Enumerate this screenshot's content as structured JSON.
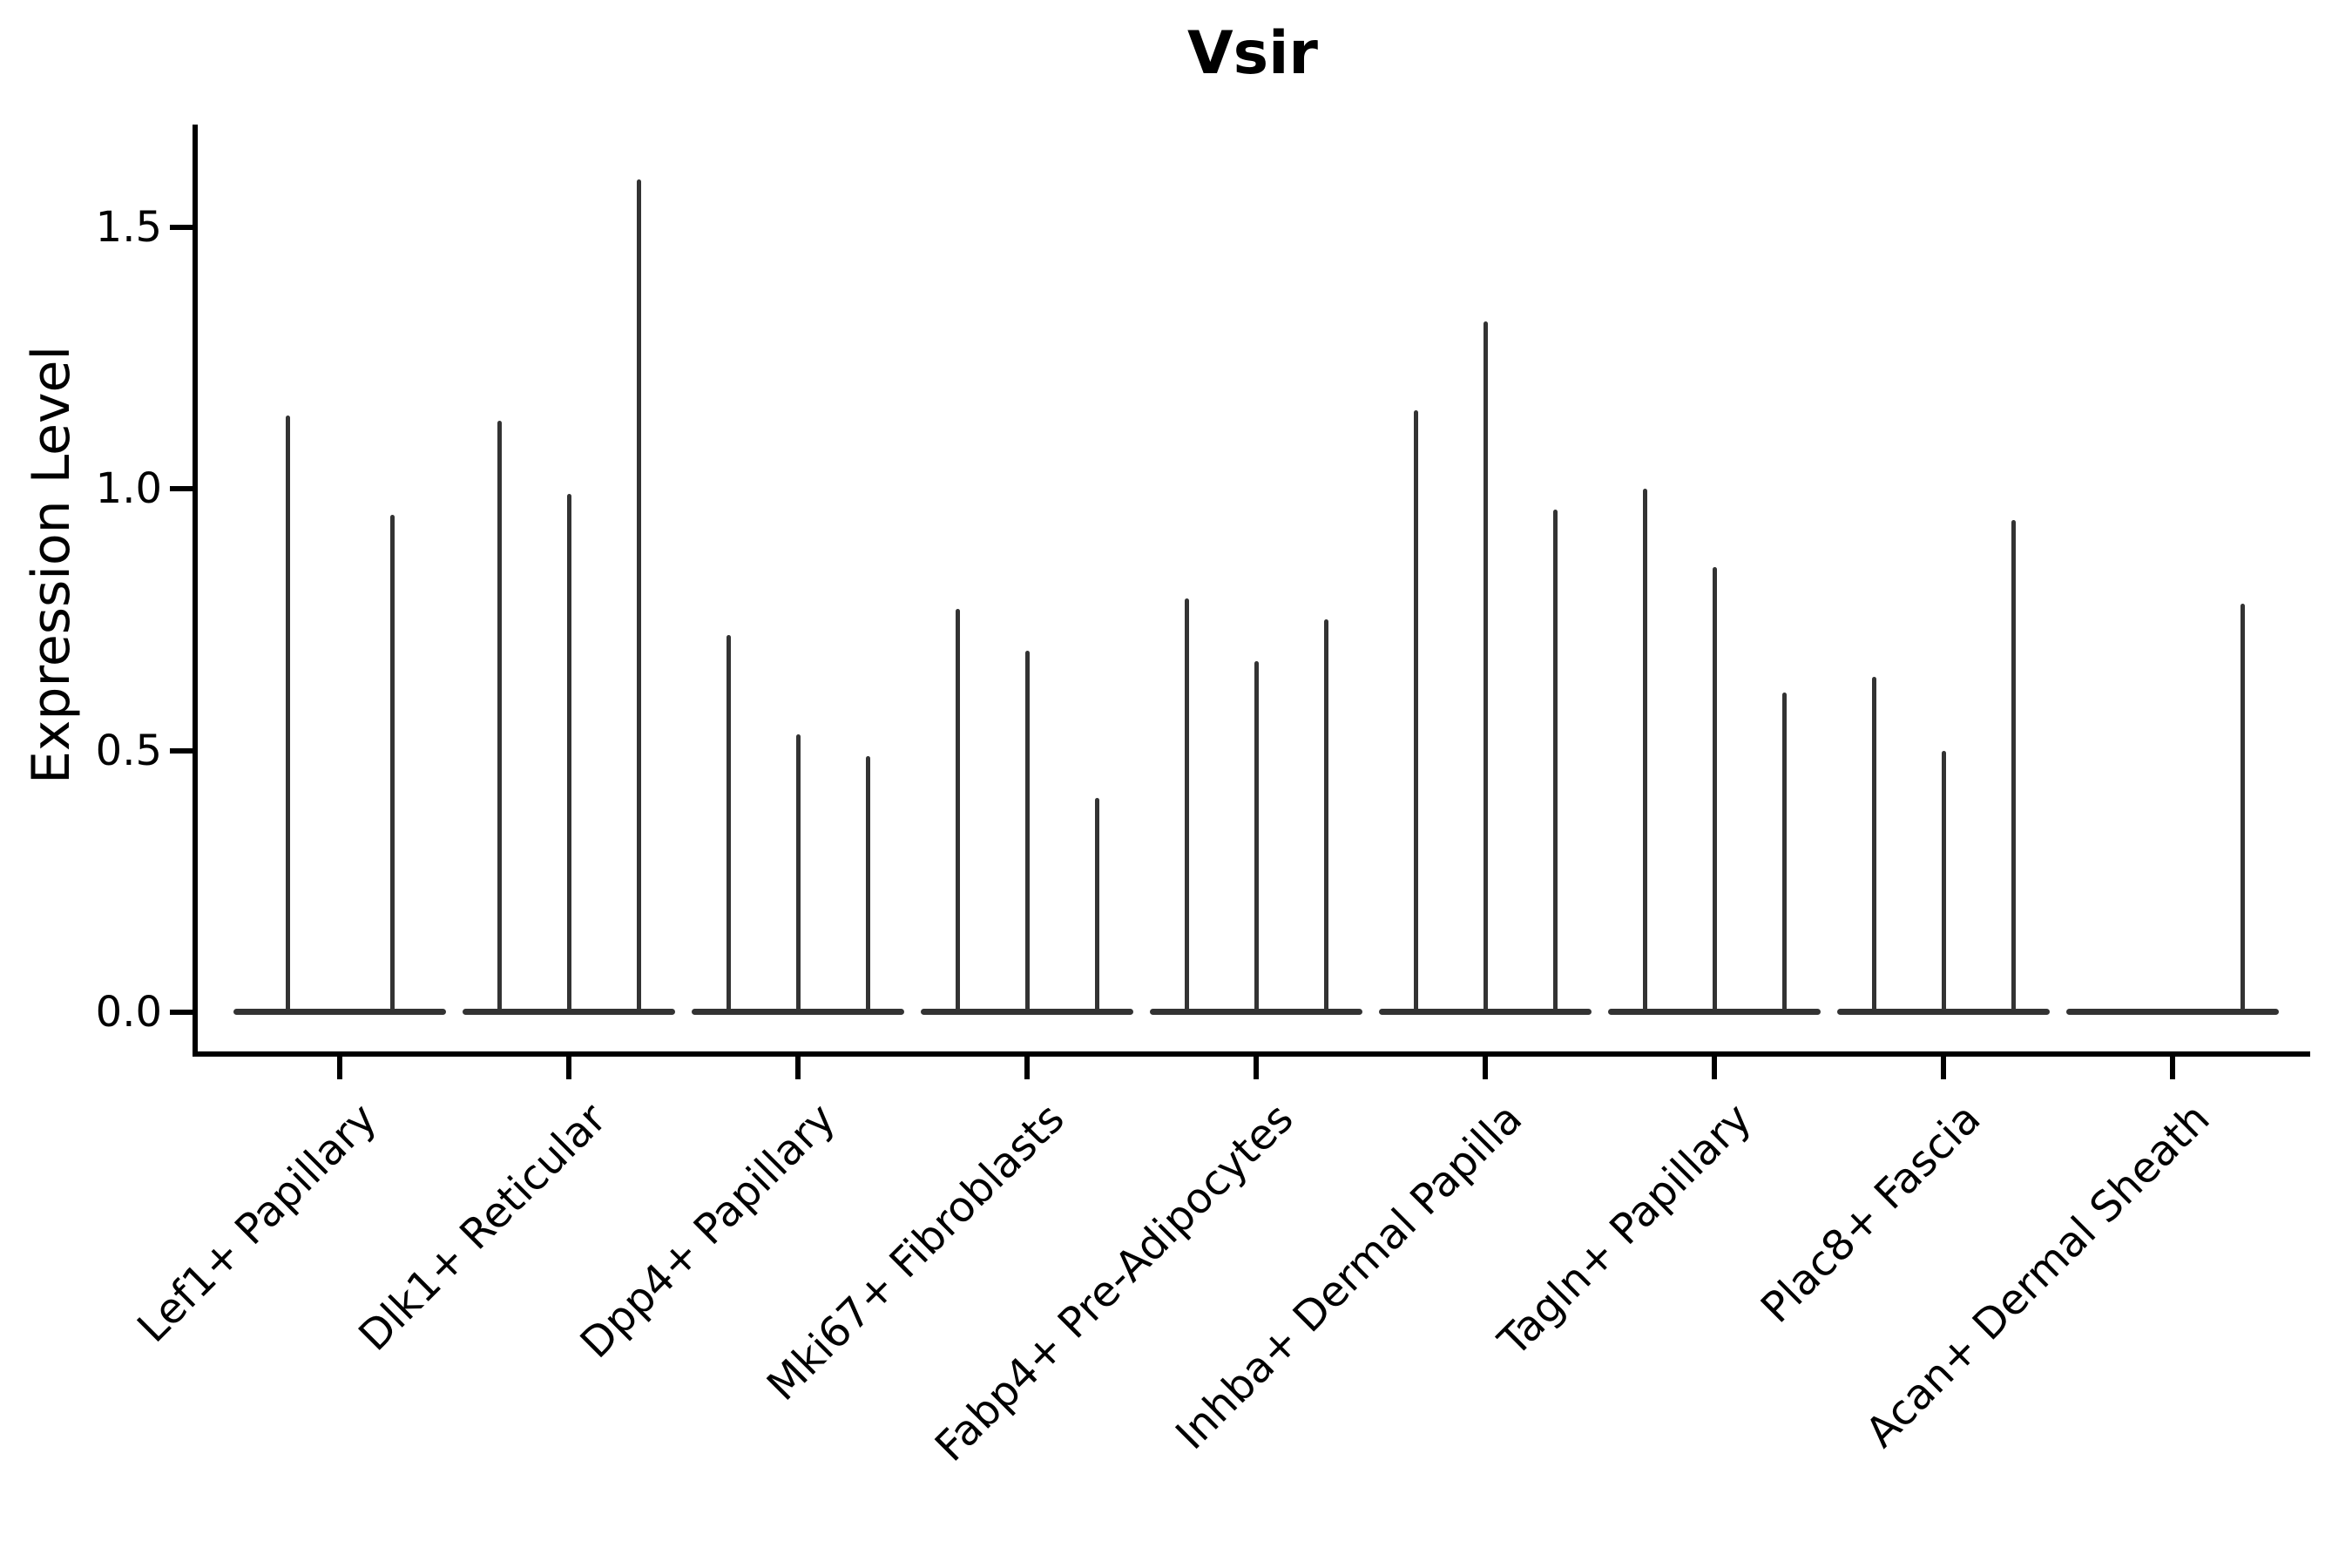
{
  "title": "Vsir",
  "y_axis": {
    "label": "Expression Level",
    "tick_labels": [
      "0.0",
      "0.5",
      "1.0",
      "1.5"
    ]
  },
  "chart_data": {
    "type": "violin",
    "title": "Vsir",
    "xlabel": "",
    "ylabel": "Expression Level",
    "ylim": [
      0,
      1.7
    ],
    "yticks": [
      0.0,
      0.5,
      1.0,
      1.5
    ],
    "grid": false,
    "legend_position": "none",
    "style_note": "needle-thin violin plot (sparse single-cell expression); each category holds grouped thin violins collapsed to a flat body at 0 with a vertical spike to the max expression value; dark gray (#333) violins on white; only left and bottom spines drawn; x labels rotated 45 degrees, right-anchored",
    "categories": [
      "Lef1+ Papillary",
      "Dlk1+ Reticular",
      "Dpp4+ Papillary",
      "Mki67+ Fibroblasts",
      "Fabp4+ Pre-Adipocytes",
      "Inhba+ Dermal Papilla",
      "Tagln+ Papillary",
      "Plac8+ Fascia",
      "Acan+ Dermal Sheath"
    ],
    "series": [
      {
        "category": "Lef1+ Papillary",
        "violin_max_expression": [
          1.14,
          0.95
        ]
      },
      {
        "category": "Dlk1+ Reticular",
        "violin_max_expression": [
          1.13,
          0.99,
          1.59
        ]
      },
      {
        "category": "Dpp4+ Papillary",
        "violin_max_expression": [
          0.72,
          0.53,
          0.49
        ]
      },
      {
        "category": "Mki67+ Fibroblasts",
        "violin_max_expression": [
          0.77,
          0.69,
          0.41
        ]
      },
      {
        "category": "Fabp4+ Pre-Adipocytes",
        "violin_max_expression": [
          0.79,
          0.67,
          0.75
        ]
      },
      {
        "category": "Inhba+ Dermal Papilla",
        "violin_max_expression": [
          1.15,
          1.32,
          0.96
        ]
      },
      {
        "category": "Tagln+ Papillary",
        "violin_max_expression": [
          1.0,
          0.85,
          0.61
        ]
      },
      {
        "category": "Plac8+ Fascia",
        "violin_max_expression": [
          0.64,
          0.5,
          0.94
        ]
      },
      {
        "category": "Acan+ Dermal Sheath",
        "violin_max_expression": [
          0,
          0,
          0.78
        ]
      }
    ]
  },
  "colors": {
    "violin": "#333333",
    "axis": "#000000",
    "text": "#000000",
    "background": "#ffffff"
  }
}
